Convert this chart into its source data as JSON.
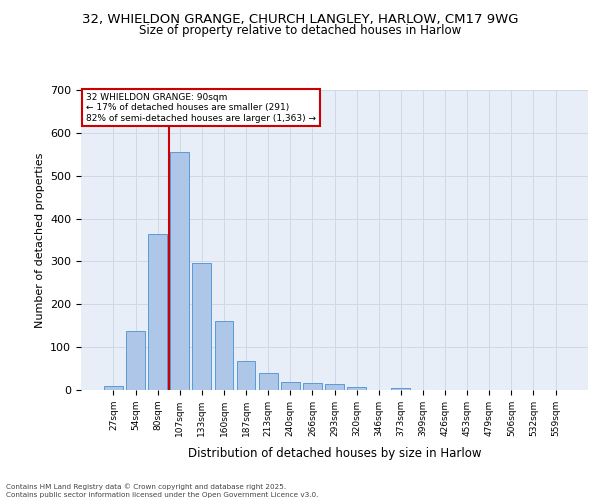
{
  "title_line1": "32, WHIELDON GRANGE, CHURCH LANGLEY, HARLOW, CM17 9WG",
  "title_line2": "Size of property relative to detached houses in Harlow",
  "xlabel": "Distribution of detached houses by size in Harlow",
  "ylabel": "Number of detached properties",
  "categories": [
    "27sqm",
    "54sqm",
    "80sqm",
    "107sqm",
    "133sqm",
    "160sqm",
    "187sqm",
    "213sqm",
    "240sqm",
    "266sqm",
    "293sqm",
    "320sqm",
    "346sqm",
    "373sqm",
    "399sqm",
    "426sqm",
    "453sqm",
    "479sqm",
    "506sqm",
    "532sqm",
    "559sqm"
  ],
  "values": [
    10,
    137,
    365,
    555,
    297,
    162,
    68,
    40,
    18,
    17,
    13,
    8,
    0,
    5,
    0,
    0,
    0,
    0,
    0,
    0,
    0
  ],
  "bar_color": "#aec6e8",
  "bar_edgecolor": "#5b9bd5",
  "red_line_index": 2,
  "annotation_line1": "32 WHIELDON GRANGE: 90sqm",
  "annotation_line2": "← 17% of detached houses are smaller (291)",
  "annotation_line3": "82% of semi-detached houses are larger (1,363) →",
  "annotation_box_facecolor": "#ffffff",
  "annotation_box_edgecolor": "#cc0000",
  "grid_color": "#d0d8e8",
  "plot_bg_color": "#e8eef8",
  "footer_line1": "Contains HM Land Registry data © Crown copyright and database right 2025.",
  "footer_line2": "Contains public sector information licensed under the Open Government Licence v3.0.",
  "ylim": [
    0,
    700
  ],
  "yticks": [
    0,
    100,
    200,
    300,
    400,
    500,
    600,
    700
  ]
}
